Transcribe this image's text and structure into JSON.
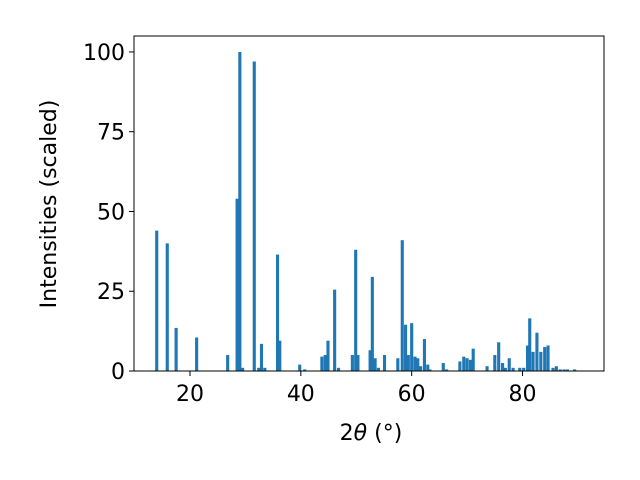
{
  "chart_data": {
    "type": "bar",
    "xlabel_prefix": "2",
    "xlabel_symbol": "θ",
    "xlabel_suffix": " (°)",
    "ylabel": "Intensities (scaled)",
    "xlim": [
      9.9,
      94.7
    ],
    "ylim": [
      0,
      105
    ],
    "xticks": [
      20,
      40,
      60,
      80
    ],
    "yticks": [
      0,
      25,
      50,
      75,
      100
    ],
    "bar_width_x": 0.75,
    "color": "#1f77b4",
    "grid": false,
    "legend": false,
    "x": [
      14.0,
      15.9,
      17.5,
      21.2,
      26.8,
      28.5,
      29.0,
      29.5,
      31.6,
      32.4,
      32.9,
      33.5,
      35.8,
      36.2,
      39.8,
      40.7,
      43.8,
      44.4,
      44.9,
      46.1,
      46.8,
      49.3,
      49.9,
      50.3,
      52.5,
      52.9,
      53.4,
      54.0,
      55.1,
      57.5,
      58.3,
      58.9,
      59.4,
      60.0,
      60.6,
      61.1,
      61.6,
      62.3,
      62.9,
      63.3,
      65.7,
      66.3,
      68.7,
      69.4,
      70.0,
      70.6,
      71.1,
      73.6,
      75.0,
      75.7,
      76.4,
      76.9,
      77.6,
      78.3,
      79.5,
      80.2,
      80.9,
      81.3,
      81.9,
      82.6,
      83.3,
      84.0,
      84.6,
      85.5,
      86.1,
      86.8,
      87.5,
      88.1,
      89.4
    ],
    "values": [
      44,
      40,
      13.5,
      10.5,
      5,
      54,
      100,
      1,
      97,
      1,
      8.5,
      1,
      36.5,
      9.5,
      2,
      0.5,
      4.5,
      5,
      9.5,
      25.5,
      1,
      5,
      38,
      5,
      6.5,
      29.5,
      4,
      1,
      5,
      4,
      41,
      14.5,
      5,
      15,
      4.5,
      4,
      1.5,
      10,
      2,
      0.5,
      2.5,
      0.5,
      3,
      4.5,
      4,
      3.5,
      7,
      1.5,
      5,
      9,
      2.5,
      1,
      4,
      1,
      1,
      1,
      8,
      16.5,
      6,
      12,
      6,
      7.5,
      8,
      1,
      1.5,
      0.5,
      0.5,
      0.5,
      0.5
    ]
  }
}
